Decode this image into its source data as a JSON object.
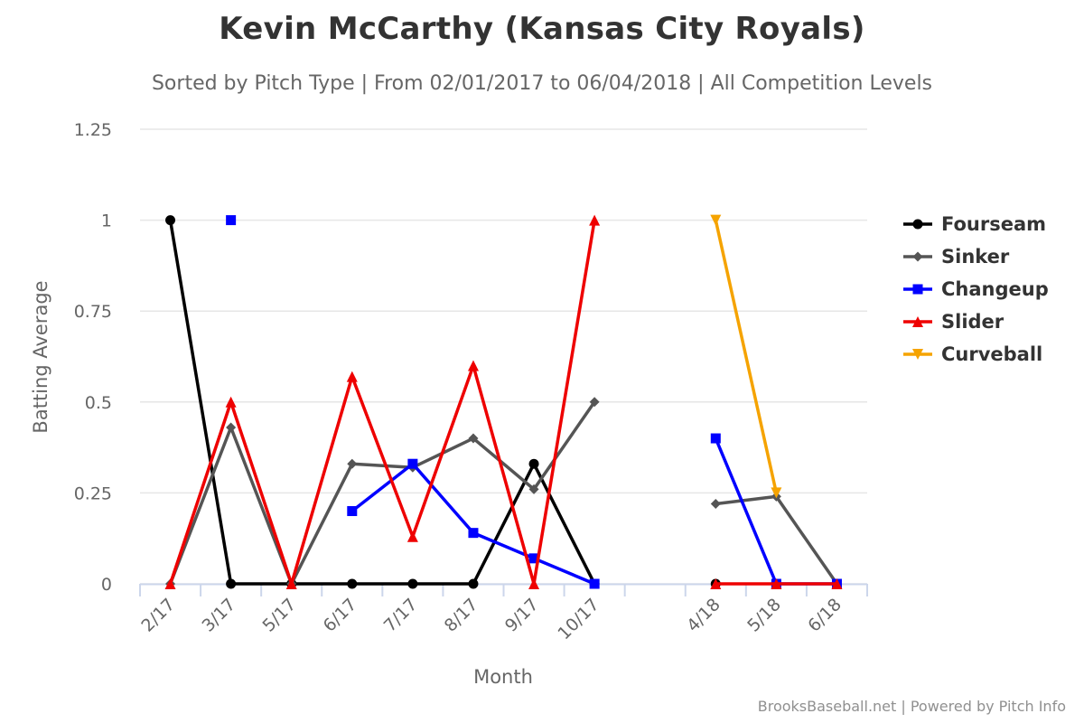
{
  "chart_data": {
    "type": "line",
    "title": "Kevin McCarthy (Kansas City Royals)",
    "subtitle": "Sorted by Pitch Type | From 02/01/2017 to 06/04/2018 | All Competition Levels",
    "xlabel": "Month",
    "ylabel": "Batting Average",
    "ylim": [
      0,
      1.25
    ],
    "yticks": [
      0,
      0.25,
      0.5,
      0.75,
      1,
      1.25
    ],
    "ytick_labels": [
      "0",
      "0.25",
      "0.5",
      "0.75",
      "1",
      "1.25"
    ],
    "categories": [
      "2/17",
      "3/17",
      "5/17",
      "6/17",
      "7/17",
      "8/17",
      "9/17",
      "10/17",
      "",
      "4/18",
      "5/18",
      "6/18"
    ],
    "grid": true,
    "legend_position": "right",
    "series": [
      {
        "name": "Fourseam",
        "color": "#000000",
        "marker": "circle",
        "values": [
          1,
          0,
          0,
          0,
          0,
          0,
          0.33,
          0,
          null,
          0,
          null,
          null
        ]
      },
      {
        "name": "Sinker",
        "color": "#555555",
        "marker": "diamond",
        "values": [
          0,
          0.43,
          0,
          0.33,
          0.32,
          0.4,
          0.26,
          0.5,
          null,
          0.22,
          0.24,
          0
        ]
      },
      {
        "name": "Changeup",
        "color": "#0000ff",
        "marker": "square",
        "values": [
          null,
          1,
          null,
          0.2,
          0.33,
          0.14,
          0.07,
          0,
          null,
          0.4,
          0,
          0
        ]
      },
      {
        "name": "Slider",
        "color": "#ee0000",
        "marker": "triangle",
        "values": [
          0,
          0.5,
          0,
          0.57,
          0.13,
          0.6,
          0,
          1,
          null,
          0,
          0,
          0
        ]
      },
      {
        "name": "Curveball",
        "color": "#f5a300",
        "marker": "triangle-down",
        "values": [
          null,
          null,
          null,
          null,
          null,
          null,
          null,
          null,
          null,
          1,
          0.25,
          null
        ]
      }
    ]
  },
  "credits": "BrooksBaseball.net | Powered by Pitch Info"
}
